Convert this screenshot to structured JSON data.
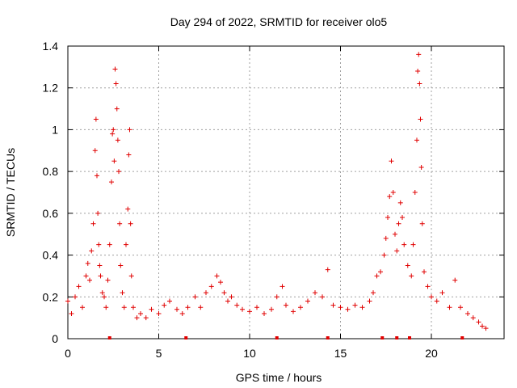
{
  "chart_data": {
    "type": "scatter",
    "title": "Day 294 of 2022, SRMTID for receiver olo5",
    "xlabel": "GPS time / hours",
    "ylabel": "SRMTID / TECUs",
    "xlim": [
      0,
      24
    ],
    "ylim": [
      0,
      1.4
    ],
    "xticks": [
      "0",
      "5",
      "10",
      "15",
      "20"
    ],
    "yticks": [
      "0",
      "0.2",
      "0.4",
      "0.6",
      "0.8",
      "1",
      "1.2",
      "1.4"
    ],
    "grid": true,
    "marker": "+",
    "color": "#e00000",
    "series": [
      {
        "name": "SRMTID",
        "x": [
          0.0,
          0.2,
          0.4,
          0.6,
          0.8,
          1.0,
          1.1,
          1.2,
          1.3,
          1.4,
          1.5,
          1.55,
          1.6,
          1.65,
          1.7,
          1.75,
          1.8,
          1.9,
          2.0,
          2.1,
          2.2,
          2.3,
          2.4,
          2.45,
          2.5,
          2.55,
          2.6,
          2.65,
          2.7,
          2.75,
          2.8,
          2.85,
          2.9,
          3.0,
          3.1,
          3.2,
          3.3,
          3.35,
          3.4,
          3.45,
          3.5,
          3.6,
          3.8,
          4.0,
          4.3,
          4.6,
          5.0,
          5.3,
          5.6,
          6.0,
          6.3,
          6.6,
          7.0,
          7.3,
          7.6,
          7.9,
          8.2,
          8.4,
          8.6,
          8.8,
          9.0,
          9.3,
          9.6,
          10.0,
          10.4,
          10.8,
          11.2,
          11.5,
          11.8,
          12.0,
          12.4,
          12.8,
          13.2,
          13.6,
          14.0,
          14.3,
          14.6,
          15.0,
          15.4,
          15.8,
          16.2,
          16.6,
          16.8,
          17.0,
          17.2,
          17.4,
          17.5,
          17.6,
          17.7,
          17.8,
          17.9,
          18.0,
          18.1,
          18.2,
          18.3,
          18.4,
          18.5,
          18.7,
          18.9,
          19.0,
          19.1,
          19.2,
          19.25,
          19.3,
          19.35,
          19.4,
          19.45,
          19.5,
          19.6,
          19.8,
          20.0,
          20.3,
          20.6,
          21.0,
          21.3,
          21.6,
          22.0,
          22.3,
          22.6,
          22.8,
          23.0
        ],
        "y": [
          0.18,
          0.12,
          0.2,
          0.25,
          0.15,
          0.3,
          0.36,
          0.28,
          0.42,
          0.55,
          0.9,
          1.05,
          0.78,
          0.6,
          0.45,
          0.35,
          0.3,
          0.22,
          0.2,
          0.15,
          0.28,
          0.45,
          0.75,
          0.98,
          1.0,
          0.85,
          1.29,
          1.22,
          1.1,
          0.95,
          0.8,
          0.55,
          0.35,
          0.22,
          0.15,
          0.45,
          0.62,
          0.88,
          1.0,
          0.55,
          0.3,
          0.15,
          0.1,
          0.12,
          0.1,
          0.14,
          0.12,
          0.16,
          0.18,
          0.14,
          0.12,
          0.15,
          0.2,
          0.15,
          0.22,
          0.25,
          0.3,
          0.27,
          0.22,
          0.18,
          0.2,
          0.16,
          0.14,
          0.13,
          0.15,
          0.12,
          0.14,
          0.2,
          0.25,
          0.16,
          0.13,
          0.15,
          0.18,
          0.22,
          0.2,
          0.33,
          0.16,
          0.15,
          0.14,
          0.16,
          0.15,
          0.18,
          0.22,
          0.3,
          0.32,
          0.4,
          0.48,
          0.58,
          0.68,
          0.85,
          0.7,
          0.5,
          0.42,
          0.55,
          0.65,
          0.58,
          0.45,
          0.35,
          0.3,
          0.45,
          0.7,
          0.95,
          1.28,
          1.36,
          1.22,
          1.05,
          0.82,
          0.55,
          0.32,
          0.25,
          0.2,
          0.18,
          0.22,
          0.15,
          0.28,
          0.15,
          0.12,
          0.1,
          0.08,
          0.06,
          0.05
        ]
      }
    ],
    "axis_markers_x": [
      2.3,
      6.5,
      11.5,
      14.3,
      17.3,
      18.1,
      18.8,
      21.7
    ]
  }
}
